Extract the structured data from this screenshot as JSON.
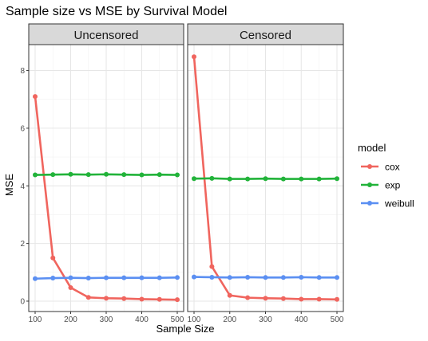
{
  "chart_data": {
    "type": "line",
    "title": "Sample size vs MSE by Survival Model",
    "xlabel": "Sample Size",
    "ylabel": "MSE",
    "x": [
      100,
      150,
      200,
      250,
      300,
      350,
      400,
      450,
      500
    ],
    "xlim": [
      100,
      500
    ],
    "ylim": [
      0,
      8.5
    ],
    "x_ticks": [
      100,
      200,
      300,
      400,
      500
    ],
    "y_ticks": [
      0,
      2,
      4,
      6,
      8
    ],
    "grid": true,
    "legend": {
      "title": "model",
      "position": "right",
      "entries": [
        "cox",
        "exp",
        "weibull"
      ]
    },
    "colors": {
      "cox": "#F0655E",
      "exp": "#22B33A",
      "weibull": "#5B8FF2"
    },
    "facets": [
      {
        "label": "Uncensored",
        "series": [
          {
            "name": "cox",
            "values": [
              7.1,
              1.5,
              0.47,
              0.13,
              0.1,
              0.09,
              0.07,
              0.06,
              0.05
            ]
          },
          {
            "name": "exp",
            "values": [
              4.38,
              4.39,
              4.4,
              4.39,
              4.4,
              4.39,
              4.38,
              4.39,
              4.38
            ]
          },
          {
            "name": "weibull",
            "values": [
              0.78,
              0.8,
              0.81,
              0.8,
              0.81,
              0.81,
              0.81,
              0.81,
              0.82
            ]
          }
        ]
      },
      {
        "label": "Censored",
        "series": [
          {
            "name": "cox",
            "values": [
              8.48,
              1.2,
              0.2,
              0.12,
              0.1,
              0.09,
              0.07,
              0.07,
              0.06
            ]
          },
          {
            "name": "exp",
            "values": [
              4.25,
              4.26,
              4.24,
              4.24,
              4.25,
              4.24,
              4.24,
              4.24,
              4.25
            ]
          },
          {
            "name": "weibull",
            "values": [
              0.84,
              0.83,
              0.82,
              0.83,
              0.82,
              0.82,
              0.83,
              0.82,
              0.82
            ]
          }
        ]
      }
    ]
  }
}
